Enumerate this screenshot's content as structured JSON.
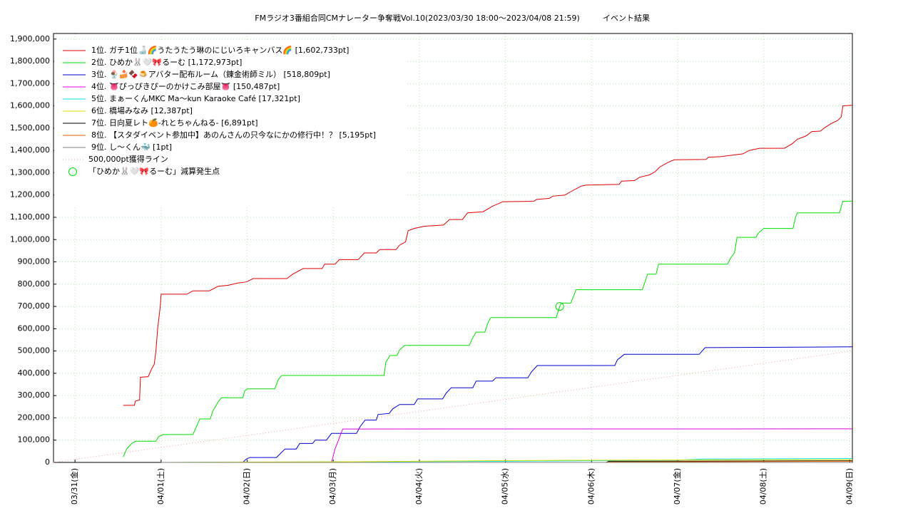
{
  "chart_data": {
    "type": "line",
    "title": "FMラジオ3番組合同CMナレーター争奪戦Vol.10(2023/03/30 18:00～2023/04/08 21:59)",
    "subtitle": "イベント結果",
    "xlim": [
      -0.25,
      9.03
    ],
    "xticks": [
      {
        "value": 0,
        "label": "03/31(金)"
      },
      {
        "value": 1,
        "label": "04/01(土)"
      },
      {
        "value": 2,
        "label": "04/02(日)"
      },
      {
        "value": 3,
        "label": "04/03(月)"
      },
      {
        "value": 4,
        "label": "04/04(火)"
      },
      {
        "value": 5,
        "label": "04/05(水)"
      },
      {
        "value": 6,
        "label": "04/06(木)"
      },
      {
        "value": 7,
        "label": "04/07(金)"
      },
      {
        "value": 8,
        "label": "04/08(土)"
      },
      {
        "value": 9,
        "label": "04/09(日)"
      }
    ],
    "ylim": [
      0,
      1925000
    ],
    "yticks": [
      0,
      {
        "value": 100000,
        "label": "100,000"
      },
      {
        "value": 200000,
        "label": "200,000"
      },
      {
        "value": 300000,
        "label": "300,000"
      },
      {
        "value": 400000,
        "label": "400,000"
      },
      {
        "value": 500000,
        "label": "500,000"
      },
      {
        "value": 600000,
        "label": "600,000"
      },
      {
        "value": 700000,
        "label": "700,000"
      },
      {
        "value": 800000,
        "label": "800,000"
      },
      {
        "value": 900000,
        "label": "900,000"
      },
      {
        "value": 1000000,
        "label": "1,000,000"
      },
      {
        "value": 1100000,
        "label": "1,100,000"
      },
      {
        "value": 1200000,
        "label": "1,200,000"
      },
      {
        "value": 1300000,
        "label": "1,300,000"
      },
      {
        "value": 1400000,
        "label": "1,400,000"
      },
      {
        "value": 1500000,
        "label": "1,500,000"
      },
      {
        "value": 1600000,
        "label": "1,600,000"
      },
      {
        "value": 1700000,
        "label": "1,700,000"
      },
      {
        "value": 1800000,
        "label": "1,800,000"
      },
      {
        "value": 1900000,
        "label": "1,900,000"
      }
    ],
    "grid": true,
    "legend": "upper left",
    "series": [
      {
        "name": "1位. ガチ1位🍶🌈うたうたう琳のにじいろキャンバス🌈 [1,602,733pt]",
        "color": "#e00000",
        "x": [
          0.56,
          0.69,
          0.7,
          0.75,
          0.76,
          0.85,
          0.89,
          0.92,
          0.94,
          0.96,
          0.99,
          1.0,
          1.3,
          1.37,
          1.56,
          1.66,
          1.78,
          1.89,
          1.99,
          2.07,
          2.46,
          2.53,
          2.65,
          2.87,
          2.9,
          3.02,
          3.07,
          3.29,
          3.36,
          3.5,
          3.54,
          3.73,
          3.77,
          3.84,
          3.87,
          3.94,
          4.06,
          4.28,
          4.35,
          4.5,
          4.56,
          4.74,
          4.85,
          4.97,
          5.33,
          5.36,
          5.51,
          5.55,
          5.69,
          5.76,
          5.88,
          5.94,
          6.32,
          6.35,
          6.5,
          6.56,
          6.67,
          6.74,
          6.79,
          6.88,
          6.96,
          7.33,
          7.36,
          7.5,
          7.66,
          7.76,
          7.83,
          7.95,
          8.24,
          8.33,
          8.39,
          8.49,
          8.56,
          8.66,
          8.7,
          8.78,
          8.86,
          8.9,
          8.92,
          9.03
        ],
        "values": [
          256000,
          256000,
          275000,
          280000,
          382000,
          385000,
          420000,
          440000,
          500000,
          600000,
          700000,
          755000,
          755000,
          770000,
          770000,
          790000,
          795000,
          805000,
          810000,
          825000,
          825000,
          845000,
          870000,
          870000,
          890000,
          890000,
          910000,
          910000,
          940000,
          940000,
          955000,
          955000,
          975000,
          990000,
          1040000,
          1050000,
          1060000,
          1065000,
          1090000,
          1090000,
          1120000,
          1125000,
          1150000,
          1170000,
          1172000,
          1180000,
          1185000,
          1195000,
          1200000,
          1215000,
          1240000,
          1245000,
          1248000,
          1262000,
          1265000,
          1280000,
          1290000,
          1305000,
          1325000,
          1345000,
          1358000,
          1360000,
          1370000,
          1372000,
          1380000,
          1385000,
          1400000,
          1410000,
          1410000,
          1430000,
          1450000,
          1465000,
          1485000,
          1487000,
          1500000,
          1520000,
          1535000,
          1550000,
          1600000,
          1602733
        ]
      },
      {
        "name": "2位. ひめか🐰🤍🎀るーむ [1,172,973pt]",
        "color": "#00e000",
        "x": [
          0.56,
          0.6,
          0.66,
          0.7,
          0.94,
          0.97,
          1.02,
          1.37,
          1.41,
          1.45,
          1.57,
          1.6,
          1.66,
          1.7,
          1.95,
          1.97,
          2.0,
          2.32,
          2.36,
          2.4,
          3.59,
          3.61,
          3.66,
          3.74,
          3.77,
          3.83,
          4.58,
          4.62,
          4.66,
          4.76,
          4.8,
          4.83,
          5.59,
          5.63,
          5.65,
          5.76,
          5.82,
          6.59,
          6.63,
          6.65,
          6.75,
          6.78,
          7.58,
          7.62,
          7.66,
          7.69,
          7.91,
          7.94,
          8.0,
          8.34,
          8.37,
          8.39,
          8.88,
          8.92,
          9.03
        ],
        "values": [
          25000,
          60000,
          85000,
          95000,
          95000,
          115000,
          125000,
          125000,
          160000,
          195000,
          195000,
          230000,
          270000,
          290000,
          290000,
          320000,
          330000,
          330000,
          370000,
          390000,
          390000,
          450000,
          480000,
          480000,
          505000,
          525000,
          525000,
          560000,
          585000,
          585000,
          630000,
          650000,
          650000,
          700000,
          715000,
          715000,
          775000,
          775000,
          820000,
          845000,
          845000,
          890000,
          890000,
          920000,
          940000,
          1010000,
          1010000,
          1030000,
          1050000,
          1050000,
          1100000,
          1120000,
          1120000,
          1172000,
          1172973
        ]
      },
      {
        "name": "3位. 🍨🍰🍫🍮アバター配布ルーム（錬金術師ミル） [518,809pt]",
        "color": "#0000d0",
        "x": [
          1.0,
          1.95,
          1.99,
          2.03,
          2.34,
          2.4,
          2.44,
          2.57,
          2.61,
          2.76,
          2.79,
          2.92,
          2.98,
          3.27,
          3.31,
          3.37,
          3.5,
          3.52,
          3.65,
          3.69,
          3.77,
          3.94,
          3.98,
          4.27,
          4.31,
          4.37,
          4.62,
          4.66,
          4.85,
          4.89,
          5.26,
          5.3,
          5.37,
          6.27,
          6.3,
          6.38,
          7.25,
          7.32,
          9.03
        ],
        "values": [
          0,
          0,
          15000,
          22000,
          22000,
          45000,
          60000,
          60000,
          85000,
          85000,
          100000,
          100000,
          130000,
          130000,
          160000,
          190000,
          190000,
          215000,
          220000,
          240000,
          260000,
          260000,
          285000,
          285000,
          310000,
          335000,
          335000,
          365000,
          365000,
          380000,
          380000,
          405000,
          435000,
          435000,
          460000,
          485000,
          485000,
          515000,
          518809
        ]
      },
      {
        "name": "4位. 👅ぴっぴきぴーのかけこみ部屋👅 [150,487pt]",
        "color": "#e000e0",
        "x": [
          1.0,
          2.98,
          3.02,
          3.07,
          3.11,
          9.03
        ],
        "values": [
          0,
          0,
          60000,
          110000,
          150000,
          150487
        ]
      },
      {
        "name": "5位. まぁーくんMKC Ma〜kun Karaoke Café [17,321pt]",
        "color": "#00e0e0",
        "x": [
          1.0,
          5.0,
          7.0,
          7.3,
          9.03
        ],
        "values": [
          0,
          5000,
          10000,
          15000,
          17321
        ]
      },
      {
        "name": "6位. 橋場みなみ [12,387pt]",
        "color": "#e0e000",
        "x": [
          1.0,
          3.02,
          4.93,
          6.17,
          9.03
        ],
        "values": [
          0,
          3000,
          8000,
          10000,
          12387
        ]
      },
      {
        "name": "7位. 日向夏レト🍊-れとちゃんねる- [6,891pt]",
        "color": "#000000",
        "x": [
          6.17,
          6.2,
          9.03
        ],
        "values": [
          0,
          5000,
          6891
        ]
      },
      {
        "name": "8位. 【スタダイベント参加中】あのんさんの只今なにかの修行中！？ [5,195pt]",
        "color": "#e06000",
        "x": [
          6.17,
          6.2,
          9.03
        ],
        "values": [
          0,
          2000,
          5195
        ]
      },
      {
        "name": "9位. し〜くん🐳 [1pt]",
        "color": "#808080",
        "x": [
          1.0,
          9.03
        ],
        "values": [
          1,
          1
        ]
      },
      {
        "name": "500,000pt獲得ライン",
        "color": "#f0a0a0",
        "line_style": "dotted",
        "x": [
          -0.25,
          9.03
        ],
        "values": [
          0,
          500000
        ]
      },
      {
        "name": "「ひめか🐰🤍🎀るーむ」減算発生点",
        "color": "#00e000",
        "marker": "circle",
        "x": [
          5.63
        ],
        "values": [
          700000
        ]
      }
    ]
  }
}
